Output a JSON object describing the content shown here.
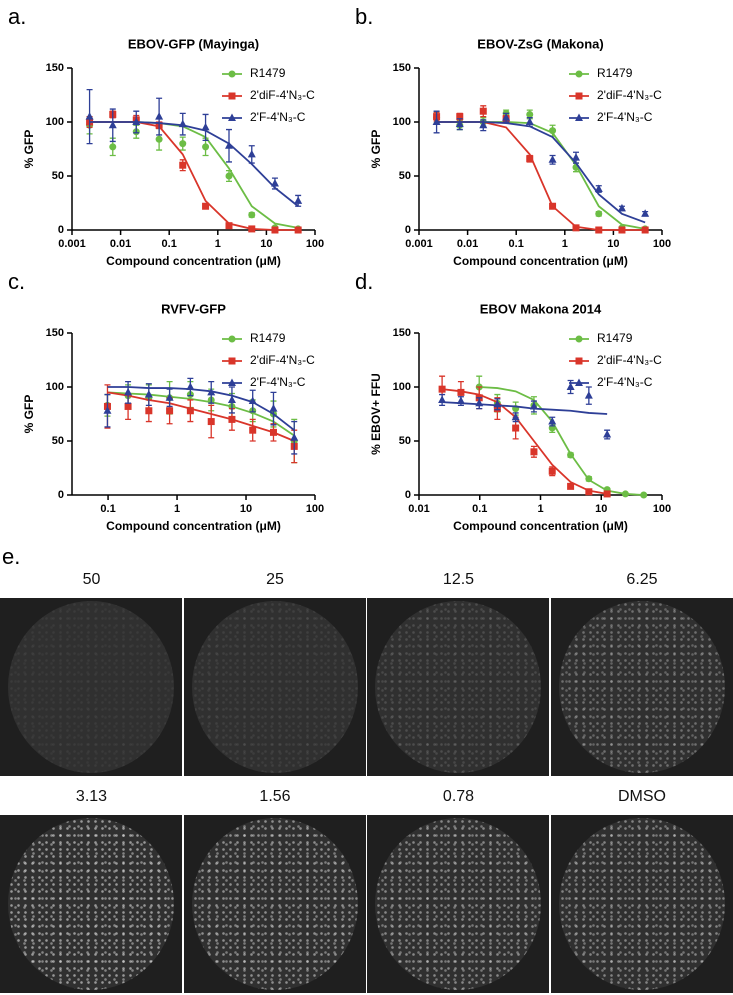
{
  "chart_data": [
    {
      "type": "scatter",
      "panel": "a.",
      "title": "EBOV-GFP (Mayinga)",
      "xlabel": "Compound concentration (μM)",
      "ylabel": "% GFP",
      "xscale": "log",
      "xlim": [
        0.001,
        100
      ],
      "xticks": [
        0.001,
        0.01,
        0.1,
        1,
        10,
        100
      ],
      "ylim": [
        0,
        150
      ],
      "yticks": [
        0,
        50,
        100,
        150
      ],
      "x": [
        0.0023,
        0.0069,
        0.021,
        0.062,
        0.19,
        0.56,
        1.7,
        5,
        15,
        45
      ],
      "series": [
        {
          "name": "R1479",
          "color": "#6cbd45",
          "marker": "circle",
          "values": [
            97,
            77,
            91,
            84,
            80,
            77,
            50,
            14,
            2,
            1
          ],
          "errors": [
            8,
            8,
            6,
            10,
            6,
            8,
            5,
            2,
            1,
            1
          ],
          "curve_values": [
            100,
            100,
            100,
            99,
            96,
            86,
            57,
            22,
            6,
            2
          ]
        },
        {
          "name": "2'diF-4'N₃-C",
          "color": "#d9352a",
          "marker": "square",
          "values": [
            100,
            107,
            102,
            97,
            60,
            22,
            4,
            1,
            0,
            0
          ],
          "errors": [
            5,
            3,
            4,
            3,
            5,
            2,
            1,
            1,
            0,
            0
          ],
          "curve_values": [
            100,
            100,
            100,
            96,
            70,
            27,
            6,
            1,
            0,
            0
          ]
        },
        {
          "name": "2'F-4'N₃-C",
          "color": "#2e3f97",
          "marker": "triangle",
          "values": [
            105,
            97,
            100,
            105,
            98,
            95,
            78,
            70,
            43,
            27
          ],
          "errors": [
            25,
            15,
            10,
            17,
            10,
            12,
            15,
            8,
            5,
            5
          ],
          "curve_values": [
            100,
            100,
            100,
            99,
            97,
            92,
            80,
            61,
            39,
            22
          ]
        }
      ]
    },
    {
      "type": "scatter",
      "panel": "b.",
      "title": "EBOV-ZsG (Makona)",
      "xlabel": "Compound concentration (μM)",
      "ylabel": "% GFP",
      "xscale": "log",
      "xlim": [
        0.001,
        100
      ],
      "xticks": [
        0.001,
        0.01,
        0.1,
        1,
        10,
        100
      ],
      "ylim": [
        0,
        150
      ],
      "yticks": [
        0,
        50,
        100,
        150
      ],
      "x": [
        0.0023,
        0.0069,
        0.021,
        0.062,
        0.19,
        0.56,
        1.7,
        5,
        15,
        45
      ],
      "series": [
        {
          "name": "R1479",
          "color": "#6cbd45",
          "marker": "circle",
          "values": [
            104,
            97,
            100,
            108,
            107,
            92,
            58,
            15,
            2,
            1
          ],
          "errors": [
            5,
            4,
            4,
            3,
            4,
            5,
            4,
            2,
            1,
            1
          ],
          "curve_values": [
            100,
            100,
            100,
            100,
            99,
            90,
            60,
            22,
            5,
            1
          ]
        },
        {
          "name": "2'diF-4'N₃-C",
          "color": "#d9352a",
          "marker": "square",
          "values": [
            105,
            105,
            110,
            103,
            66,
            22,
            2,
            0,
            0,
            0
          ],
          "errors": [
            4,
            3,
            5,
            3,
            3,
            2,
            1,
            0,
            0,
            0
          ],
          "curve_values": [
            100,
            100,
            100,
            95,
            70,
            22,
            3,
            0,
            0,
            0
          ]
        },
        {
          "name": "2'F-4'N₃-C",
          "color": "#2e3f97",
          "marker": "triangle",
          "values": [
            100,
            98,
            97,
            104,
            100,
            65,
            67,
            38,
            20,
            15
          ],
          "errors": [
            10,
            5,
            5,
            4,
            4,
            4,
            5,
            3,
            2,
            2
          ],
          "curve_values": [
            100,
            100,
            100,
            99,
            96,
            86,
            62,
            33,
            15,
            7
          ]
        }
      ]
    },
    {
      "type": "scatter",
      "panel": "c.",
      "title": "RVFV-GFP",
      "xlabel": "Compound concentration (μM)",
      "ylabel": "% GFP",
      "xscale": "log",
      "xlim": [
        0.03,
        100
      ],
      "xticks": [
        0.1,
        1,
        10,
        100
      ],
      "ylim": [
        0,
        150
      ],
      "yticks": [
        0,
        50,
        100,
        150
      ],
      "x": [
        0.098,
        0.195,
        0.39,
        0.78,
        1.56,
        3.13,
        6.25,
        12.5,
        25,
        50
      ],
      "series": [
        {
          "name": "R1479",
          "color": "#6cbd45",
          "marker": "circle",
          "values": [
            83,
            92,
            90,
            90,
            93,
            88,
            82,
            78,
            75,
            50
          ],
          "errors": [
            10,
            10,
            12,
            15,
            12,
            10,
            12,
            10,
            12,
            20
          ],
          "curve_values": [
            95,
            94,
            93,
            91,
            89,
            86,
            82,
            76,
            68,
            55
          ]
        },
        {
          "name": "2'diF-4'N₃-C",
          "color": "#d9352a",
          "marker": "square",
          "values": [
            82,
            82,
            78,
            78,
            78,
            68,
            70,
            60,
            58,
            45
          ],
          "errors": [
            20,
            12,
            10,
            12,
            10,
            15,
            10,
            10,
            8,
            15
          ],
          "curve_values": [
            95,
            92,
            88,
            85,
            80,
            75,
            70,
            64,
            58,
            50
          ]
        },
        {
          "name": "2'F-4'N₃-C",
          "color": "#2e3f97",
          "marker": "triangle",
          "values": [
            78,
            95,
            93,
            90,
            100,
            95,
            88,
            87,
            80,
            53
          ],
          "errors": [
            15,
            10,
            10,
            8,
            8,
            10,
            12,
            10,
            15,
            15
          ],
          "curve_values": [
            100,
            100,
            99,
            99,
            98,
            96,
            92,
            86,
            75,
            60
          ]
        }
      ]
    },
    {
      "type": "scatter",
      "panel": "d.",
      "title": "EBOV Makona 2014",
      "xlabel": "Compound concentration (μM)",
      "ylabel": "% EBOV+ FFU",
      "xscale": "log",
      "xlim": [
        0.01,
        100
      ],
      "xticks": [
        0.01,
        0.1,
        1,
        10,
        100
      ],
      "ylim": [
        0,
        150
      ],
      "yticks": [
        0,
        50,
        100,
        150
      ],
      "x": [
        0.024,
        0.049,
        0.098,
        0.195,
        0.39,
        0.78,
        1.56,
        3.13,
        6.25,
        12.5,
        25,
        50
      ],
      "series": [
        {
          "name": "R1479",
          "color": "#6cbd45",
          "marker": "circle",
          "values": [
            null,
            null,
            100,
            85,
            80,
            83,
            62,
            37,
            15,
            5,
            1,
            0
          ],
          "errors": [
            null,
            null,
            10,
            8,
            6,
            8,
            4,
            2,
            2,
            1,
            1,
            0
          ],
          "curve_values": [
            null,
            null,
            100,
            99,
            96,
            88,
            68,
            38,
            14,
            4,
            1,
            0
          ]
        },
        {
          "name": "2'diF-4'N₃-C",
          "color": "#d9352a",
          "marker": "square",
          "values": [
            98,
            95,
            90,
            80,
            62,
            40,
            22,
            8,
            3,
            1,
            null,
            null
          ],
          "errors": [
            12,
            10,
            10,
            10,
            10,
            5,
            4,
            2,
            1,
            1,
            null,
            null
          ],
          "curve_values": [
            98,
            96,
            93,
            86,
            72,
            50,
            28,
            12,
            4,
            1,
            null,
            null
          ]
        },
        {
          "name": "2'F-4'N₃-C",
          "color": "#2e3f97",
          "marker": "triangle",
          "values": [
            88,
            87,
            85,
            84,
            72,
            82,
            68,
            100,
            92,
            56,
            null,
            null
          ],
          "errors": [
            5,
            4,
            5,
            5,
            4,
            5,
            4,
            6,
            8,
            4,
            null,
            null
          ],
          "curve_values": [
            86,
            85,
            84,
            83,
            82,
            80,
            79,
            78,
            76,
            75,
            null,
            null
          ]
        }
      ]
    }
  ],
  "panel_e": {
    "label": "e.",
    "wells": [
      "50",
      "25",
      "12.5",
      "6.25",
      "3.13",
      "1.56",
      "0.78",
      "DMSO"
    ]
  }
}
